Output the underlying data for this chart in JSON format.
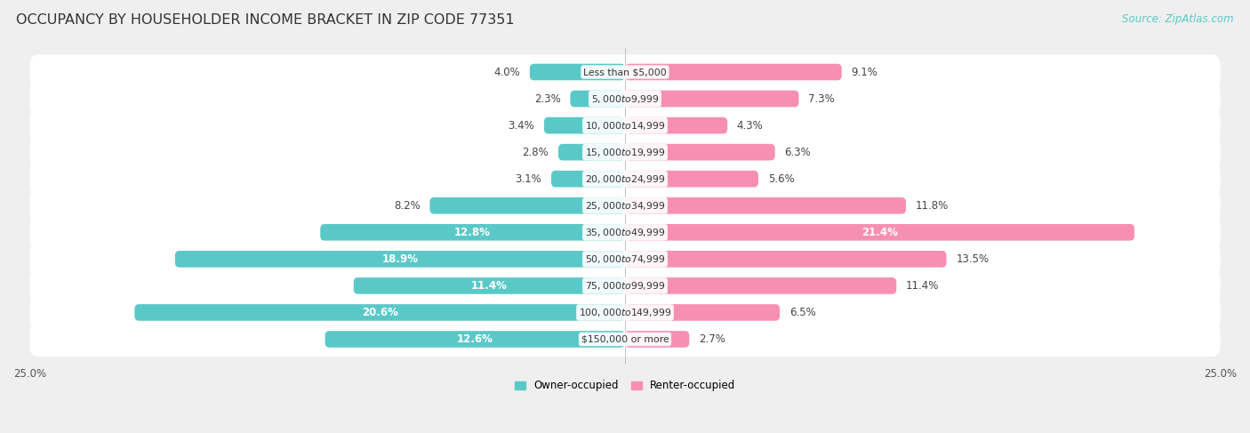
{
  "title": "OCCUPANCY BY HOUSEHOLDER INCOME BRACKET IN ZIP CODE 77351",
  "source": "Source: ZipAtlas.com",
  "categories": [
    "Less than $5,000",
    "$5,000 to $9,999",
    "$10,000 to $14,999",
    "$15,000 to $19,999",
    "$20,000 to $24,999",
    "$25,000 to $34,999",
    "$35,000 to $49,999",
    "$50,000 to $74,999",
    "$75,000 to $99,999",
    "$100,000 to $149,999",
    "$150,000 or more"
  ],
  "owner_values": [
    4.0,
    2.3,
    3.4,
    2.8,
    3.1,
    8.2,
    12.8,
    18.9,
    11.4,
    20.6,
    12.6
  ],
  "renter_values": [
    9.1,
    7.3,
    4.3,
    6.3,
    5.6,
    11.8,
    21.4,
    13.5,
    11.4,
    6.5,
    2.7
  ],
  "owner_color": "#5bc8c8",
  "renter_color": "#f78fb3",
  "owner_label": "Owner-occupied",
  "renter_label": "Renter-occupied",
  "axis_limit": 25.0,
  "background_color": "#efefef",
  "title_fontsize": 11.5,
  "label_fontsize": 8.5,
  "source_fontsize": 8.5,
  "axis_label_fontsize": 8.5,
  "cat_fontsize": 7.8
}
